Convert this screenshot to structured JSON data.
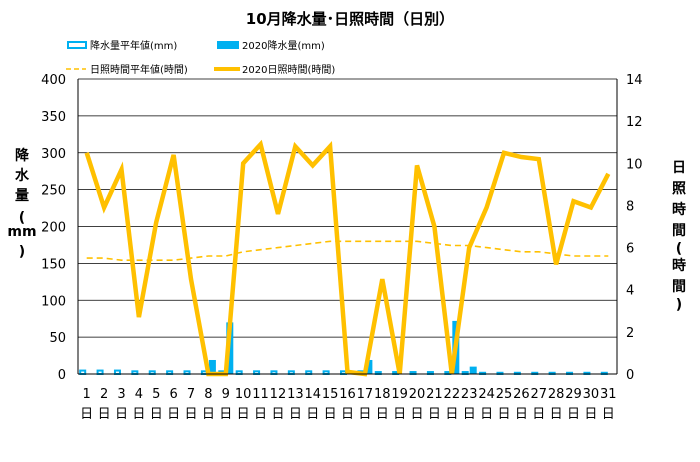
{
  "chart_data": {
    "type": "bar-line-combo",
    "title": "10月降水量･日照時間（日別）",
    "ylabel_left": [
      "降",
      "水",
      "量",
      "(",
      "mm",
      ")"
    ],
    "ylabel_right": [
      "日",
      "照",
      "時",
      "間",
      "(",
      "時",
      "間",
      ")"
    ],
    "ylim_left": [
      0,
      400
    ],
    "yticks_left": [
      "0",
      "50",
      "100",
      "150",
      "200",
      "250",
      "300",
      "350",
      "400"
    ],
    "ylim_right": [
      0,
      14
    ],
    "yticks_right": [
      "0",
      "2",
      "4",
      "6",
      "8",
      "10",
      "12",
      "14"
    ],
    "categories": [
      "1",
      "2",
      "3",
      "4",
      "5",
      "6",
      "7",
      "8",
      "9",
      "10",
      "11",
      "12",
      "13",
      "14",
      "15",
      "16",
      "17",
      "18",
      "19",
      "20",
      "21",
      "22",
      "23",
      "24",
      "25",
      "26",
      "27",
      "28",
      "29",
      "30",
      "31"
    ],
    "day_suffix": "日",
    "grid": true,
    "legend_position": "top",
    "series": [
      {
        "name": "降水量平年値(mm)",
        "type": "bar",
        "axis": "left",
        "color": "#00b0f0",
        "style": "hollow",
        "values": [
          6,
          6,
          6,
          5,
          5,
          5,
          5,
          5,
          5,
          5,
          5,
          5,
          5,
          5,
          5,
          5,
          5,
          4,
          4,
          4,
          4,
          4,
          4,
          3,
          3,
          3,
          3,
          3,
          3,
          3,
          3
        ]
      },
      {
        "name": "2020降水量(mm)",
        "type": "bar",
        "axis": "left",
        "color": "#00b0f0",
        "style": "filled",
        "values": [
          0,
          0,
          0,
          0,
          0,
          0,
          0,
          19,
          70,
          0,
          0,
          0,
          0,
          0,
          0,
          0,
          19,
          0,
          0,
          0,
          0,
          72,
          10,
          0,
          0,
          0,
          0,
          0,
          0,
          0,
          0
        ]
      },
      {
        "name": "日照時間平年値(時間)",
        "type": "line",
        "axis": "right",
        "color": "#ffc000",
        "style": "dashed",
        "values": [
          5.5,
          5.5,
          5.4,
          5.4,
          5.4,
          5.4,
          5.5,
          5.6,
          5.6,
          5.8,
          5.9,
          6.0,
          6.1,
          6.2,
          6.3,
          6.3,
          6.3,
          6.3,
          6.3,
          6.3,
          6.2,
          6.1,
          6.1,
          6.0,
          5.9,
          5.8,
          5.8,
          5.7,
          5.6,
          5.6,
          5.6
        ]
      },
      {
        "name": "2020日照時間(時間)",
        "type": "line",
        "axis": "right",
        "color": "#ffc000",
        "style": "solid",
        "values": [
          10.5,
          7.9,
          9.7,
          2.7,
          7.2,
          10.4,
          4.5,
          0,
          0,
          10.0,
          10.9,
          7.6,
          10.8,
          9.9,
          10.8,
          0.1,
          0,
          4.5,
          0,
          9.9,
          7.0,
          0,
          6.0,
          7.9,
          10.5,
          10.3,
          10.2,
          5.2,
          8.2,
          7.9,
          9.5
        ]
      }
    ]
  }
}
